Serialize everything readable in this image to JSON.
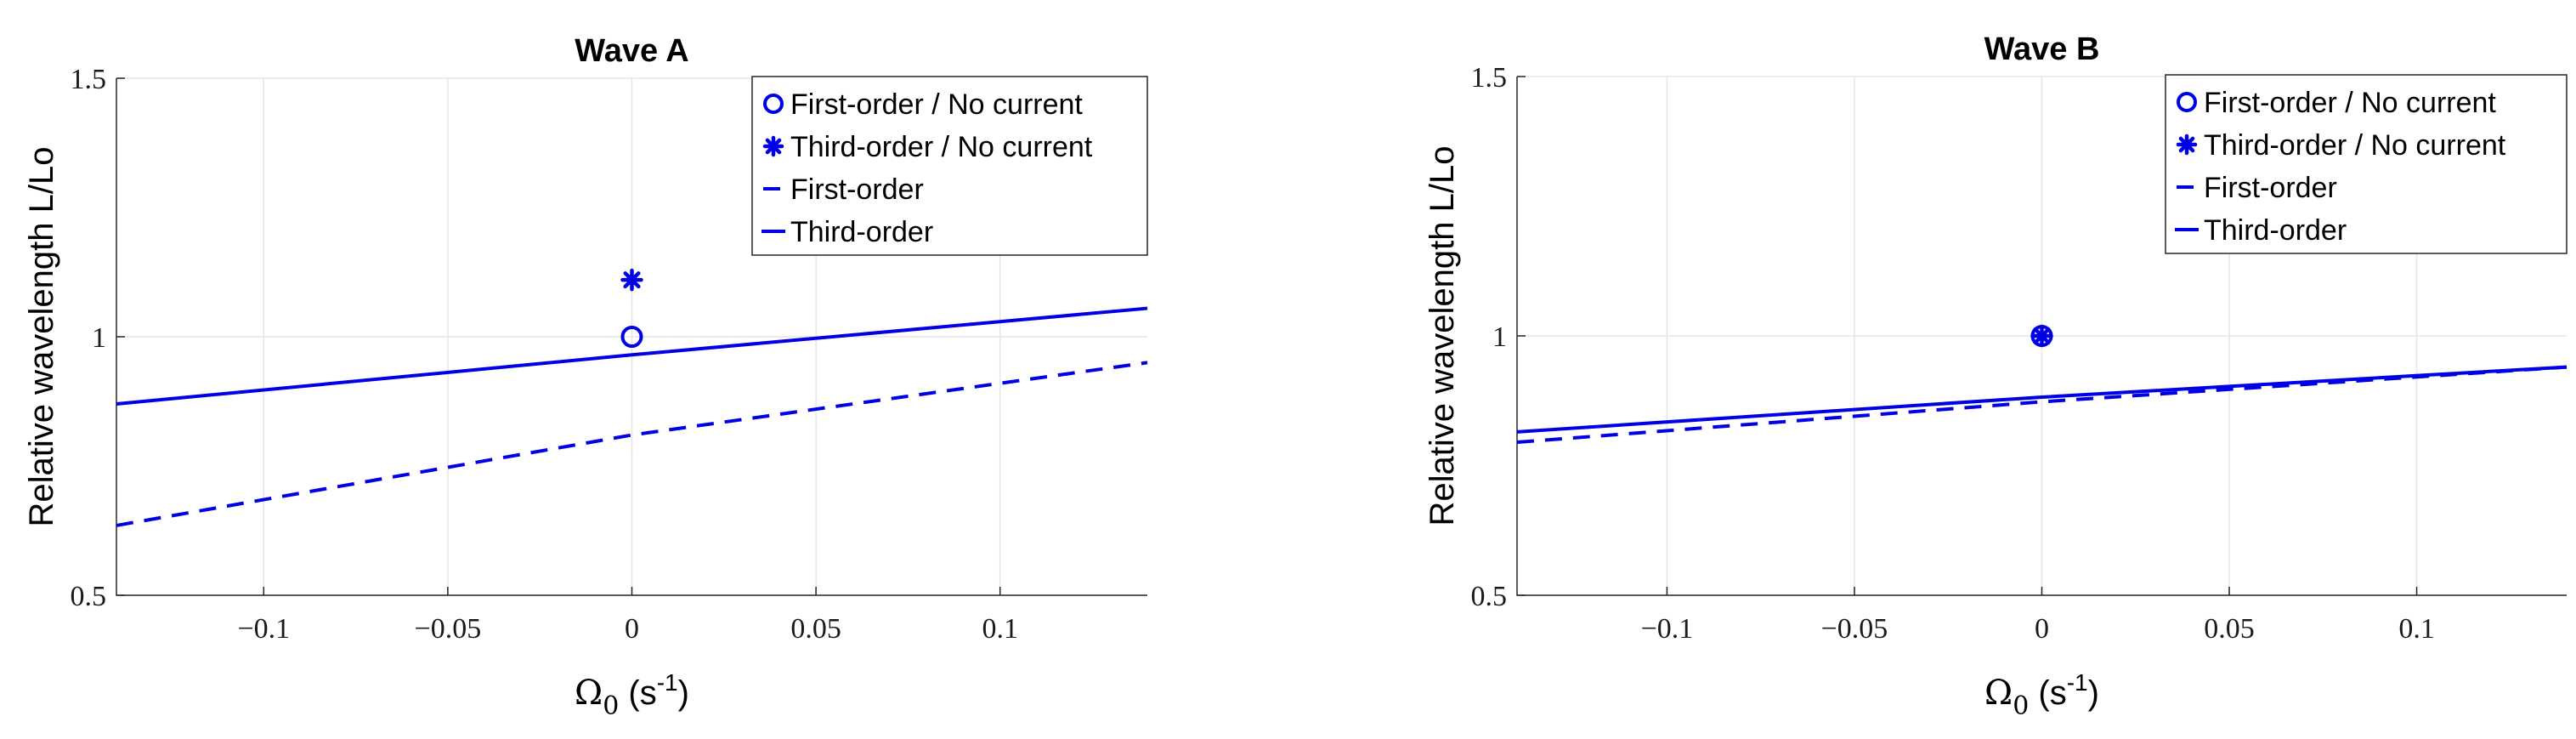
{
  "chart_data": [
    {
      "type": "line",
      "title": "Wave A",
      "ylabel": "Relative wavelength L/Lo",
      "xlabel_symbol": "Ω",
      "xlabel_sub": "0",
      "xlabel_unit_open": " (s",
      "xlabel_unit_sup": "-1",
      "xlabel_unit_close": ")",
      "xlim": [
        -0.14,
        0.14
      ],
      "ylim": [
        0.5,
        1.5
      ],
      "xticks": [
        -0.1,
        -0.05,
        0,
        0.05,
        0.1
      ],
      "xtick_labels": [
        "−0.1",
        "−0.05",
        "0",
        "0.05",
        "0.1"
      ],
      "yticks": [
        0.5,
        1,
        1.5
      ],
      "ytick_labels": [
        "0.5",
        "1",
        "1.5"
      ],
      "grid": true,
      "legend_position": "top-right",
      "color": "#0000e6",
      "series": [
        {
          "name": "First-order / No current",
          "style": "circle-marker",
          "x": [
            0
          ],
          "y": [
            1.0
          ]
        },
        {
          "name": "Third-order / No current",
          "style": "star-marker",
          "x": [
            0
          ],
          "y": [
            1.11
          ]
        },
        {
          "name": "First-order",
          "style": "dashed",
          "x": [
            -0.14,
            0,
            0.14
          ],
          "y": [
            0.635,
            0.81,
            0.95
          ]
        },
        {
          "name": "Third-order",
          "style": "solid",
          "x": [
            -0.14,
            0,
            0.14
          ],
          "y": [
            0.87,
            0.965,
            1.055
          ]
        }
      ]
    },
    {
      "type": "line",
      "title": "Wave B",
      "ylabel": "Relative wavelength L/Lo",
      "xlabel_symbol": "Ω",
      "xlabel_sub": "0",
      "xlabel_unit_open": " (s",
      "xlabel_unit_sup": "-1",
      "xlabel_unit_close": ")",
      "xlim": [
        -0.14,
        0.14
      ],
      "ylim": [
        0.5,
        1.5
      ],
      "xticks": [
        -0.1,
        -0.05,
        0,
        0.05,
        0.1
      ],
      "xtick_labels": [
        "−0.1",
        "−0.05",
        "0",
        "0.05",
        "0.1"
      ],
      "yticks": [
        0.5,
        1,
        1.5
      ],
      "ytick_labels": [
        "0.5",
        "1",
        "1.5"
      ],
      "grid": true,
      "legend_position": "top-right",
      "color": "#0000e6",
      "series": [
        {
          "name": "First-order / No current",
          "style": "circle-marker",
          "x": [
            0
          ],
          "y": [
            1.0
          ]
        },
        {
          "name": "Third-order / No current",
          "style": "star-marker",
          "x": [
            0
          ],
          "y": [
            1.0
          ]
        },
        {
          "name": "First-order",
          "style": "dashed",
          "x": [
            -0.14,
            0,
            0.14
          ],
          "y": [
            0.795,
            0.873,
            0.94
          ]
        },
        {
          "name": "Third-order",
          "style": "solid",
          "x": [
            -0.14,
            0,
            0.14
          ],
          "y": [
            0.815,
            0.882,
            0.94
          ]
        }
      ]
    }
  ]
}
